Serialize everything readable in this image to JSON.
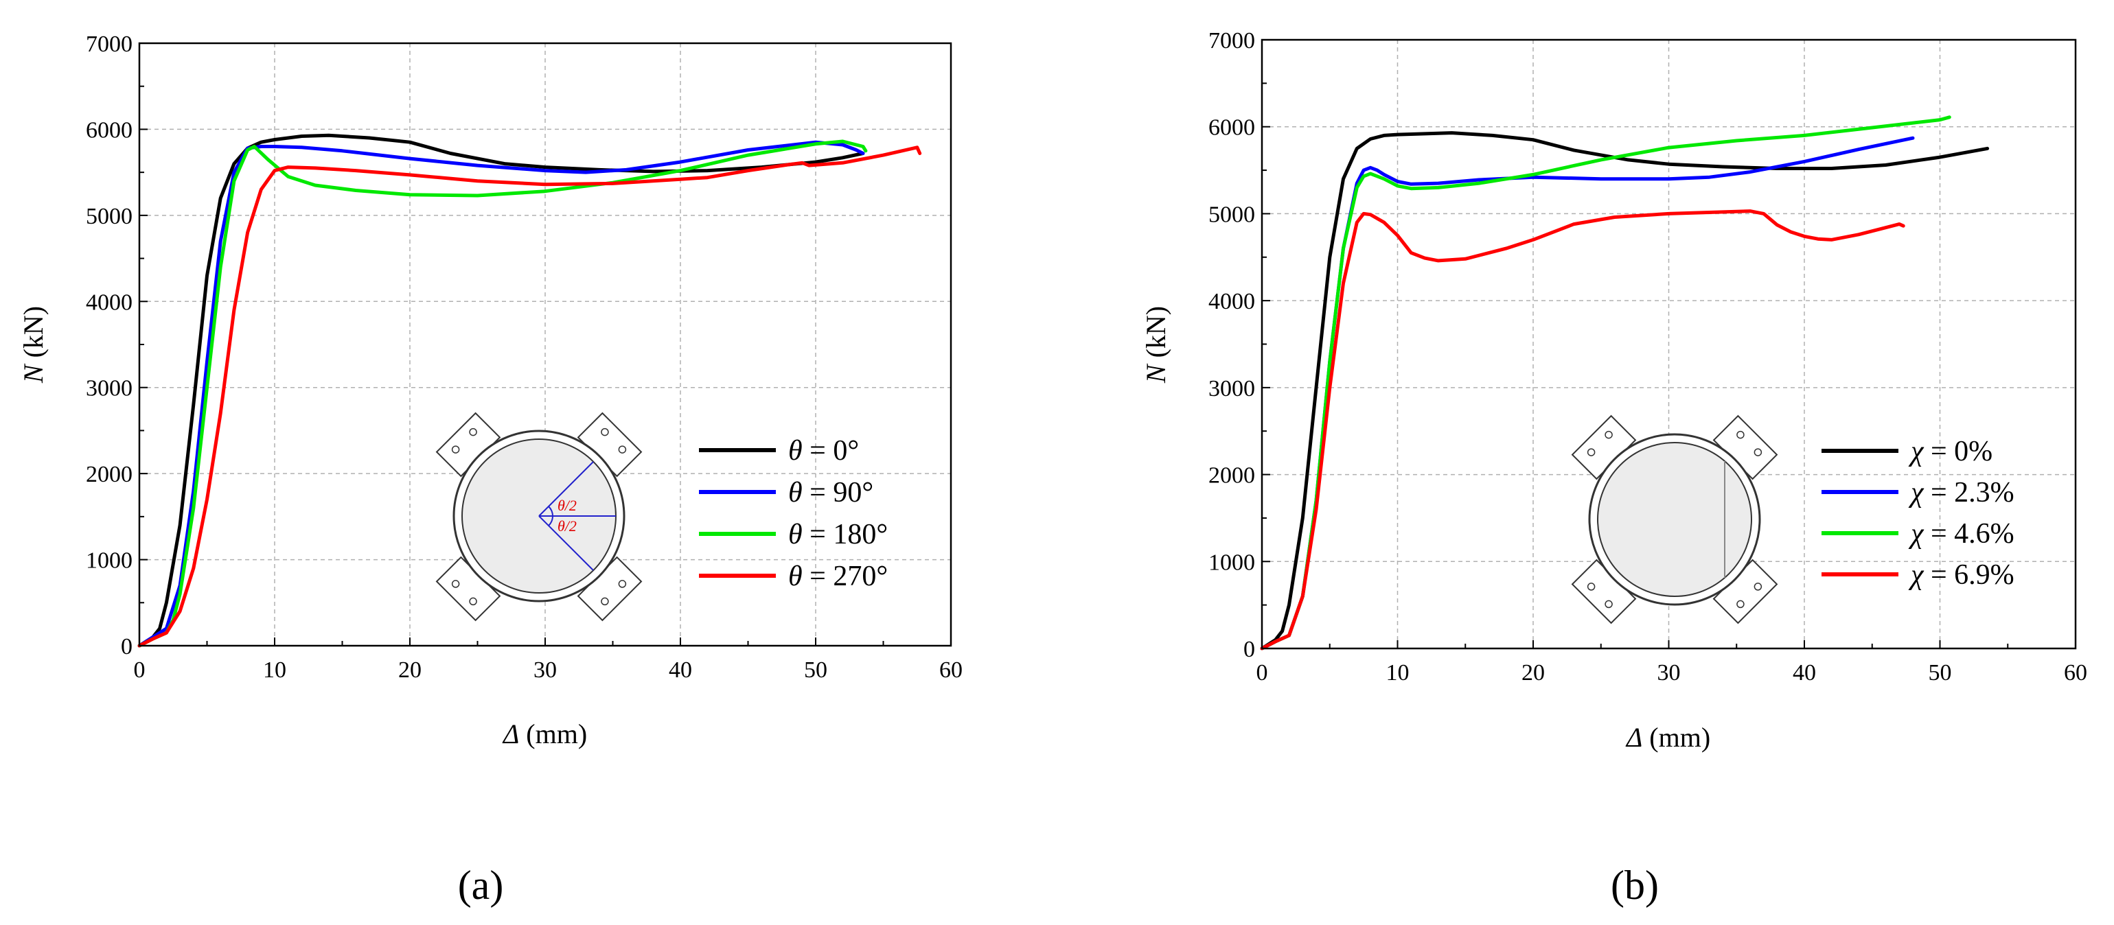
{
  "chart_data": [
    {
      "type": "line",
      "panel_label": "(a)",
      "xlabel_symbol": "Δ",
      "xlabel_unit": " (mm)",
      "ylabel_symbol": "N",
      "ylabel_unit": " (kN)",
      "xlim": [
        0,
        60
      ],
      "ylim": [
        0,
        7000
      ],
      "xticks": [
        "0",
        "10",
        "20",
        "30",
        "40",
        "50",
        "60"
      ],
      "yticks": [
        "0",
        "1000",
        "2000",
        "3000",
        "4000",
        "5000",
        "6000",
        "7000"
      ],
      "grid": true,
      "legend_symbol": "θ",
      "legend_placement": "lower-right",
      "inset_labels": [
        "θ/2",
        "θ/2"
      ],
      "series": [
        {
          "name": "= 0°",
          "color": "#000000",
          "x": [
            0,
            1,
            1.5,
            2,
            3,
            4,
            5,
            6,
            7,
            8,
            9,
            10,
            12,
            14,
            17,
            20,
            23,
            27,
            30,
            34,
            38,
            42,
            46,
            50,
            52,
            53.5
          ],
          "y": [
            0,
            100,
            200,
            500,
            1400,
            2800,
            4300,
            5200,
            5600,
            5780,
            5850,
            5880,
            5920,
            5930,
            5900,
            5850,
            5720,
            5600,
            5560,
            5530,
            5510,
            5520,
            5560,
            5620,
            5670,
            5720
          ]
        },
        {
          "name": "= 90°",
          "color": "#0000ff",
          "x": [
            0,
            1,
            2,
            3,
            4,
            5,
            6,
            7,
            8,
            9,
            10,
            12,
            15,
            20,
            25,
            30,
            33,
            36,
            40,
            45,
            50,
            52,
            53,
            53.5
          ],
          "y": [
            0,
            100,
            200,
            700,
            1800,
            3300,
            4700,
            5500,
            5780,
            5800,
            5800,
            5790,
            5750,
            5660,
            5580,
            5520,
            5500,
            5530,
            5620,
            5760,
            5850,
            5820,
            5760,
            5720
          ]
        },
        {
          "name": "= 180°",
          "color": "#00e800",
          "x": [
            0,
            1,
            2,
            2.5,
            3,
            4,
            5,
            6,
            7,
            8,
            8.5,
            9.5,
            11,
            13,
            16,
            20,
            25,
            30,
            35,
            40,
            45,
            50,
            52,
            53.5,
            53.7
          ],
          "y": [
            0,
            80,
            150,
            300,
            600,
            1600,
            3000,
            4400,
            5400,
            5760,
            5800,
            5650,
            5450,
            5350,
            5290,
            5240,
            5230,
            5280,
            5380,
            5520,
            5700,
            5830,
            5860,
            5800,
            5750
          ]
        },
        {
          "name": "= 270°",
          "color": "#ff0000",
          "x": [
            0,
            1,
            2,
            3,
            4,
            5,
            6,
            7,
            8,
            9,
            10,
            11,
            13,
            16,
            20,
            25,
            30,
            35,
            40,
            42,
            45,
            48,
            49,
            49.5,
            52,
            55,
            57.5,
            57.7
          ],
          "y": [
            0,
            80,
            150,
            400,
            900,
            1700,
            2700,
            3900,
            4800,
            5300,
            5520,
            5560,
            5550,
            5520,
            5470,
            5400,
            5360,
            5370,
            5420,
            5440,
            5520,
            5590,
            5610,
            5580,
            5610,
            5700,
            5790,
            5720
          ]
        }
      ]
    },
    {
      "type": "line",
      "panel_label": "(b)",
      "xlabel_symbol": "Δ",
      "xlabel_unit": " (mm)",
      "ylabel_symbol": "N",
      "ylabel_unit": " (kN)",
      "xlim": [
        0,
        60
      ],
      "ylim": [
        0,
        7000
      ],
      "xticks": [
        "0",
        "10",
        "20",
        "30",
        "40",
        "50",
        "60"
      ],
      "yticks": [
        "0",
        "1000",
        "2000",
        "3000",
        "4000",
        "5000",
        "6000",
        "7000"
      ],
      "grid": true,
      "legend_symbol": "χ",
      "legend_placement": "lower-right",
      "series": [
        {
          "name": "= 0%",
          "color": "#000000",
          "x": [
            0,
            1,
            1.5,
            2,
            3,
            4,
            5,
            6,
            7,
            8,
            9,
            10,
            12,
            14,
            17,
            20,
            23,
            27,
            30,
            34,
            38,
            42,
            46,
            50,
            53.5
          ],
          "y": [
            0,
            100,
            200,
            500,
            1500,
            3000,
            4500,
            5400,
            5750,
            5860,
            5900,
            5910,
            5920,
            5930,
            5900,
            5850,
            5730,
            5620,
            5570,
            5540,
            5520,
            5520,
            5560,
            5650,
            5750
          ]
        },
        {
          "name": "= 2.3%",
          "color": "#0000ff",
          "x": [
            0,
            1,
            2,
            3,
            4,
            5,
            6,
            7,
            7.5,
            8,
            8.5,
            9,
            10,
            11,
            13,
            16,
            20,
            25,
            30,
            33,
            36,
            40,
            44,
            48
          ],
          "y": [
            0,
            80,
            150,
            600,
            1700,
            3300,
            4600,
            5350,
            5500,
            5530,
            5500,
            5450,
            5370,
            5340,
            5350,
            5390,
            5420,
            5400,
            5400,
            5420,
            5480,
            5600,
            5740,
            5870
          ]
        },
        {
          "name": "= 4.6%",
          "color": "#00e800",
          "x": [
            0,
            1,
            2,
            3,
            4,
            5,
            6,
            7,
            7.5,
            8,
            9,
            10,
            11,
            13,
            16,
            20,
            25,
            30,
            35,
            40,
            45,
            50,
            50.7
          ],
          "y": [
            0,
            80,
            150,
            600,
            1700,
            3300,
            4600,
            5300,
            5430,
            5460,
            5400,
            5320,
            5290,
            5300,
            5350,
            5450,
            5620,
            5760,
            5840,
            5900,
            5990,
            6080,
            6110
          ]
        },
        {
          "name": "= 6.9%",
          "color": "#ff0000",
          "x": [
            0,
            1,
            2,
            3,
            4,
            5,
            6,
            7,
            7.5,
            8,
            9,
            10,
            11,
            12,
            13,
            15,
            18,
            20,
            23,
            26,
            30,
            34,
            36,
            37,
            38,
            39,
            40,
            41,
            42,
            44,
            46,
            47,
            47.3
          ],
          "y": [
            0,
            80,
            150,
            600,
            1600,
            3000,
            4200,
            4900,
            5000,
            4990,
            4900,
            4750,
            4550,
            4490,
            4460,
            4480,
            4600,
            4700,
            4880,
            4960,
            5000,
            5020,
            5030,
            5000,
            4870,
            4790,
            4740,
            4710,
            4700,
            4760,
            4840,
            4880,
            4860
          ]
        }
      ]
    }
  ]
}
